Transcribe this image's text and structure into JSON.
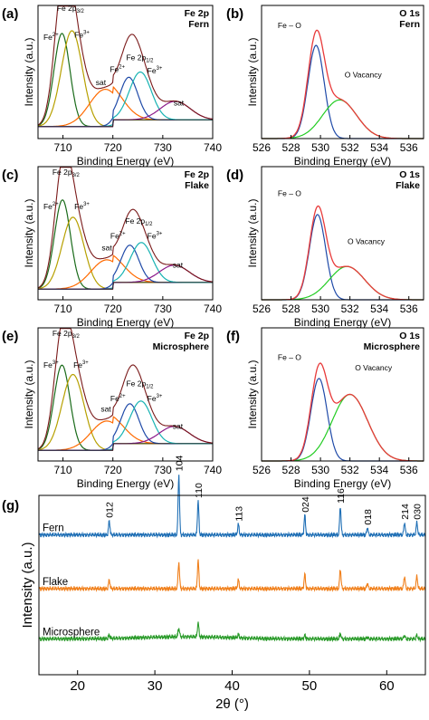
{
  "chart_data": [
    {
      "id": "a",
      "type": "line",
      "panel_label": "(a)",
      "title_lines": [
        "Fe 2p",
        "Fern"
      ],
      "xlabel": "Binding Energy (eV)",
      "ylabel": "Intensity (a.u.)",
      "xlim": [
        705,
        740
      ],
      "xticks": [
        710,
        720,
        730,
        740
      ],
      "ylim": [
        0,
        1
      ],
      "peaks": [
        {
          "center": 709.8,
          "height": 0.7,
          "width": 1.6,
          "color": "#1a6b1a"
        },
        {
          "center": 711.8,
          "height": 0.72,
          "width": 2.1,
          "color": "#b7a000"
        },
        {
          "center": 718.5,
          "height": 0.28,
          "width": 3.2,
          "color": "#ff6a00"
        },
        {
          "center": 723.2,
          "height": 0.32,
          "width": 1.8,
          "color": "#1f4aa8"
        },
        {
          "center": 725.5,
          "height": 0.36,
          "width": 2.2,
          "color": "#17b3b3"
        },
        {
          "center": 732.5,
          "height": 0.14,
          "width": 3.0,
          "color": "#8b1a8b"
        }
      ],
      "background_level": 0.09,
      "background_step": 0.05,
      "background_step_at": 720,
      "annotations": [
        {
          "text": "Fe 2p",
          "sub": "3/2",
          "x": 711.5,
          "y": 0.96
        },
        {
          "text": "Fe",
          "sup": "2+",
          "x": 707.6,
          "y": 0.74
        },
        {
          "text": "Fe",
          "sup": "3+",
          "x": 713.8,
          "y": 0.76
        },
        {
          "text": "sat",
          "x": 717.6,
          "y": 0.4
        },
        {
          "text": "Fe 2p",
          "sub": "1/2",
          "x": 725.4,
          "y": 0.59
        },
        {
          "text": "Fe",
          "sup": "2+",
          "x": 720.9,
          "y": 0.5
        },
        {
          "text": "Fe",
          "sup": "3+",
          "x": 728.4,
          "y": 0.49
        },
        {
          "text": "sat",
          "x": 733.2,
          "y": 0.25
        }
      ]
    },
    {
      "id": "b",
      "type": "line",
      "panel_label": "(b)",
      "title_lines": [
        "O 1s",
        "Fern"
      ],
      "xlabel": "Binding Energy (eV)",
      "ylabel": "Intensity (a.u.)",
      "xlim": [
        526,
        537
      ],
      "xticks": [
        526,
        528,
        530,
        532,
        534,
        536
      ],
      "ylim": [
        0,
        1
      ],
      "peaks": [
        {
          "center": 529.7,
          "height": 0.7,
          "width": 0.55,
          "color": "#1f4aa8"
        },
        {
          "center": 531.3,
          "height": 0.29,
          "width": 1.15,
          "color": "#22cc22"
        }
      ],
      "background_level": 0.0,
      "background_step": 0.0,
      "background_step_at": 0,
      "annotations": [
        {
          "text": "Fe – O",
          "x": 527.9,
          "y": 0.83
        },
        {
          "text": "O Vacancy",
          "x": 532.9,
          "y": 0.46
        }
      ]
    },
    {
      "id": "c",
      "type": "line",
      "panel_label": "(c)",
      "title_lines": [
        "Fe 2p",
        "Flake"
      ],
      "xlabel": "Binding Energy (eV)",
      "ylabel": "Intensity (a.u.)",
      "xlim": [
        705,
        740
      ],
      "xticks": [
        710,
        720,
        730,
        740
      ],
      "ylim": [
        0,
        1
      ],
      "peaks": [
        {
          "center": 709.9,
          "height": 0.67,
          "width": 1.6,
          "color": "#1a6b1a"
        },
        {
          "center": 712.0,
          "height": 0.54,
          "width": 2.2,
          "color": "#b7a000"
        },
        {
          "center": 718.8,
          "height": 0.22,
          "width": 3.2,
          "color": "#ff6a00"
        },
        {
          "center": 723.4,
          "height": 0.28,
          "width": 1.8,
          "color": "#1f4aa8"
        },
        {
          "center": 725.7,
          "height": 0.3,
          "width": 2.2,
          "color": "#17b3b3"
        },
        {
          "center": 732.3,
          "height": 0.13,
          "width": 3.0,
          "color": "#8b1a8b"
        }
      ],
      "background_level": 0.08,
      "background_step": 0.05,
      "background_step_at": 720,
      "annotations": [
        {
          "text": "Fe 2p",
          "sub": "3/2",
          "x": 710.6,
          "y": 0.94
        },
        {
          "text": "Fe",
          "sup": "2+",
          "x": 707.6,
          "y": 0.68
        },
        {
          "text": "Fe",
          "sup": "3+",
          "x": 713.8,
          "y": 0.68
        },
        {
          "text": "sat",
          "x": 718.8,
          "y": 0.37
        },
        {
          "text": "Fe 2p",
          "sub": "1/2",
          "x": 725.2,
          "y": 0.57
        },
        {
          "text": "Fe",
          "sup": "2+",
          "x": 721.0,
          "y": 0.46
        },
        {
          "text": "Fe",
          "sup": "3+",
          "x": 728.4,
          "y": 0.46
        },
        {
          "text": "sat",
          "x": 733.0,
          "y": 0.24
        }
      ]
    },
    {
      "id": "d",
      "type": "line",
      "panel_label": "(d)",
      "title_lines": [
        "O 1s",
        "Flake"
      ],
      "xlabel": "Binding Energy (eV)",
      "ylabel": "Intensity (a.u.)",
      "xlim": [
        526,
        537
      ],
      "xticks": [
        526,
        528,
        530,
        532,
        534,
        536
      ],
      "ylim": [
        0,
        1
      ],
      "peaks": [
        {
          "center": 529.8,
          "height": 0.64,
          "width": 0.55,
          "color": "#1f4aa8"
        },
        {
          "center": 531.8,
          "height": 0.25,
          "width": 1.2,
          "color": "#22cc22"
        }
      ],
      "background_level": 0.0,
      "background_step": 0.0,
      "background_step_at": 0,
      "annotations": [
        {
          "text": "Fe – O",
          "x": 527.9,
          "y": 0.78
        },
        {
          "text": "O Vacancy",
          "x": 533.1,
          "y": 0.42
        }
      ]
    },
    {
      "id": "e",
      "type": "line",
      "panel_label": "(e)",
      "title_lines": [
        "Fe 2p",
        "Microsphere"
      ],
      "xlabel": "Binding Energy (eV)",
      "ylabel": "Intensity (a.u.)",
      "xlim": [
        705,
        740
      ],
      "xticks": [
        710,
        720,
        730,
        740
      ],
      "ylim": [
        0,
        1
      ],
      "peaks": [
        {
          "center": 709.8,
          "height": 0.64,
          "width": 1.6,
          "color": "#1a6b1a"
        },
        {
          "center": 712.0,
          "height": 0.57,
          "width": 2.2,
          "color": "#b7a000"
        },
        {
          "center": 718.8,
          "height": 0.22,
          "width": 3.2,
          "color": "#ff6a00"
        },
        {
          "center": 723.4,
          "height": 0.3,
          "width": 1.8,
          "color": "#1f4aa8"
        },
        {
          "center": 725.6,
          "height": 0.32,
          "width": 2.2,
          "color": "#17b3b3"
        },
        {
          "center": 732.3,
          "height": 0.13,
          "width": 3.0,
          "color": "#8b1a8b"
        }
      ],
      "background_level": 0.08,
      "background_step": 0.05,
      "background_step_at": 720,
      "annotations": [
        {
          "text": "Fe 2p",
          "sub": "3/2",
          "x": 710.6,
          "y": 0.94
        },
        {
          "text": "Fe",
          "sup": "3+",
          "x": 707.6,
          "y": 0.7
        },
        {
          "text": "Fe",
          "sup": "3+",
          "x": 713.6,
          "y": 0.7
        },
        {
          "text": "sat",
          "x": 718.6,
          "y": 0.37
        },
        {
          "text": "Fe 2p",
          "sub": "1/2",
          "x": 725.4,
          "y": 0.56
        },
        {
          "text": "Fe",
          "sup": "2+",
          "x": 721.0,
          "y": 0.45
        },
        {
          "text": "Fe",
          "sup": "3+",
          "x": 728.4,
          "y": 0.45
        },
        {
          "text": "sat",
          "x": 733.0,
          "y": 0.24
        }
      ]
    },
    {
      "id": "f",
      "type": "line",
      "panel_label": "(f)",
      "title_lines": [
        "O 1s",
        "Microsphere"
      ],
      "xlabel": "Binding Energy (eV)",
      "ylabel": "Intensity (a.u.)",
      "xlim": [
        526,
        537
      ],
      "xticks": [
        526,
        528,
        530,
        532,
        534,
        536
      ],
      "ylim": [
        0,
        1
      ],
      "peaks": [
        {
          "center": 529.9,
          "height": 0.62,
          "width": 0.55,
          "color": "#1f4aa8"
        },
        {
          "center": 532.0,
          "height": 0.5,
          "width": 1.2,
          "color": "#22cc22"
        }
      ],
      "background_level": 0.0,
      "background_step": 0.0,
      "background_step_at": 0,
      "annotations": [
        {
          "text": "Fe – O",
          "x": 527.9,
          "y": 0.76
        },
        {
          "text": "O Vacancy",
          "x": 533.6,
          "y": 0.68
        }
      ]
    },
    {
      "id": "g",
      "type": "line",
      "panel_label": "(g)",
      "xlabel": "2θ (°)",
      "ylabel": "Intensity (a.u.)",
      "xlim": [
        15,
        65
      ],
      "xticks": [
        20,
        30,
        40,
        50,
        60
      ],
      "ylim": [
        0,
        1
      ],
      "reflections": [
        {
          "label": "012",
          "x": 24.1,
          "fern": 0.08,
          "flake": 0.05,
          "micro": 0.02
        },
        {
          "label": "104",
          "x": 33.1,
          "fern": 0.34,
          "flake": 0.15,
          "micro": 0.05
        },
        {
          "label": "110",
          "x": 35.6,
          "fern": 0.19,
          "flake": 0.16,
          "micro": 0.08
        },
        {
          "label": "113",
          "x": 40.8,
          "fern": 0.06,
          "flake": 0.05,
          "micro": 0.02
        },
        {
          "label": "024",
          "x": 49.4,
          "fern": 0.11,
          "flake": 0.08,
          "micro": 0.02
        },
        {
          "label": "116",
          "x": 54.0,
          "fern": 0.16,
          "flake": 0.11,
          "micro": 0.03
        },
        {
          "label": "018",
          "x": 57.5,
          "fern": 0.04,
          "flake": 0.03,
          "micro": 0.01
        },
        {
          "label": "214",
          "x": 62.3,
          "fern": 0.07,
          "flake": 0.07,
          "micro": 0.02
        },
        {
          "label": "030",
          "x": 63.9,
          "fern": 0.07,
          "flake": 0.07,
          "micro": 0.02
        }
      ],
      "series": [
        {
          "name": "Fern",
          "key": "fern",
          "baseline": 0.78,
          "color": "#1f6fb5"
        },
        {
          "name": "Flake",
          "key": "flake",
          "baseline": 0.48,
          "color": "#f07f1a"
        },
        {
          "name": "Microsphere",
          "key": "micro",
          "baseline": 0.2,
          "color": "#2a9b2a"
        }
      ]
    }
  ]
}
